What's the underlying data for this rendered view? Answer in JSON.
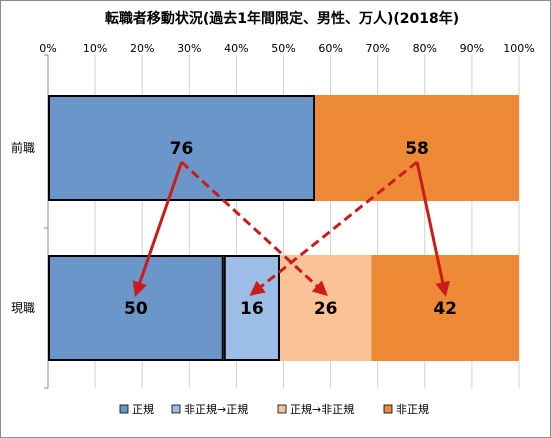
{
  "chart_data": {
    "type": "bar",
    "orientation": "horizontal",
    "stacked": "100%",
    "title": "転職者移動状況(過去1年間限定、男性、万人)(2018年)",
    "xlim": [
      0,
      100
    ],
    "x_ticks": [
      "0%",
      "10%",
      "20%",
      "30%",
      "40%",
      "50%",
      "60%",
      "70%",
      "80%",
      "90%",
      "100%"
    ],
    "grid": true,
    "legend_position": "bottom",
    "rows": [
      {
        "category": "前職",
        "segments": [
          {
            "name": "正規",
            "value": 76,
            "color": "#6a96c9",
            "show_label": true
          },
          {
            "name": "非正規",
            "value": 58,
            "color": "#ee8a35",
            "show_label": true
          }
        ]
      },
      {
        "category": "現職",
        "segments": [
          {
            "name": "正規",
            "value": 50,
            "color": "#6a96c9",
            "show_label": true
          },
          {
            "name": "非正規→正規",
            "value": 16,
            "color": "#9cbde6",
            "show_label": true
          },
          {
            "name": "正規→非正規",
            "value": 26,
            "color": "#fbc298",
            "show_label": true
          },
          {
            "name": "非正規",
            "value": 42,
            "color": "#ee8a35",
            "show_label": true
          }
        ]
      }
    ],
    "legend": [
      {
        "label": "正規",
        "color": "#6a96c9"
      },
      {
        "label": "非正規→正規",
        "color": "#9cbde6"
      },
      {
        "label": "正規→非正規",
        "color": "#fbc298"
      },
      {
        "label": "非正規",
        "color": "#ee8a35"
      }
    ],
    "arrows": [
      {
        "from": "76",
        "to": "50",
        "style": "solid"
      },
      {
        "from": "76",
        "to": "26",
        "style": "dashed"
      },
      {
        "from": "58",
        "to": "16",
        "style": "dashed"
      },
      {
        "from": "58",
        "to": "42",
        "style": "solid"
      }
    ],
    "arrow_color": "#cc1b1b"
  }
}
